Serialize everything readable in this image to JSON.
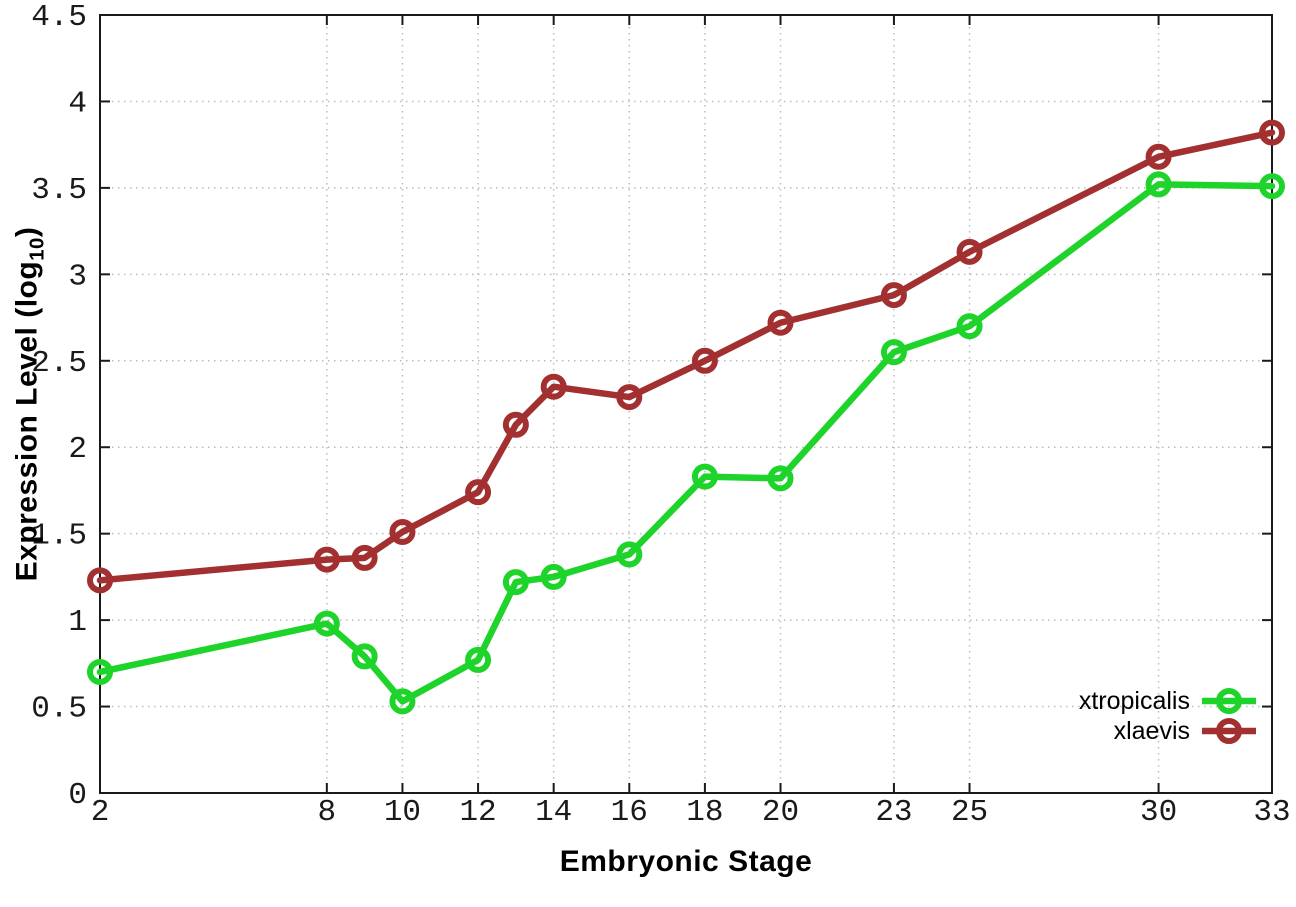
{
  "chart_data": {
    "type": "line",
    "title": "",
    "xlabel": "Embryonic Stage",
    "ylabel": {
      "prefix": "Expression Level (log",
      "sub": "10",
      "suffix": ")"
    },
    "x": [
      2,
      8,
      9,
      10,
      12,
      13,
      14,
      16,
      18,
      20,
      23,
      25,
      30,
      33
    ],
    "series": [
      {
        "name": "xtropicalis",
        "color": "#1ed32a",
        "marker": "open-circle",
        "values": [
          0.7,
          0.98,
          0.79,
          0.53,
          0.77,
          1.22,
          1.25,
          1.38,
          1.83,
          1.82,
          2.55,
          2.7,
          3.52,
          3.51
        ]
      },
      {
        "name": "xlaevis",
        "color": "#a23030",
        "marker": "open-circle",
        "values": [
          1.23,
          1.35,
          1.36,
          1.51,
          1.74,
          2.13,
          2.35,
          2.29,
          2.5,
          2.72,
          2.88,
          3.13,
          3.68,
          3.82
        ]
      }
    ],
    "xlim": [
      2,
      33
    ],
    "ylim": [
      0,
      4.5
    ],
    "xtick_values": [
      2,
      8,
      10,
      12,
      14,
      16,
      18,
      20,
      23,
      25,
      30,
      33
    ],
    "xtick_labels": [
      "2",
      "8",
      "10",
      "12",
      "14",
      "16",
      "18",
      "20",
      "23",
      "25",
      "30",
      "33"
    ],
    "ytick_values": [
      0,
      0.5,
      1,
      1.5,
      2,
      2.5,
      3,
      3.5,
      4,
      4.5
    ],
    "ytick_labels": [
      "0",
      "0.5",
      "1",
      "1.5",
      "2",
      "2.5",
      "3",
      "3.5",
      "4",
      "4.5"
    ],
    "grid": true,
    "legend_position": "bottom-right",
    "axis_color": "#1a1a1a",
    "tick_label_color": "#1a1a1a",
    "grid_color": "#bcbcbc",
    "background": "#ffffff"
  }
}
